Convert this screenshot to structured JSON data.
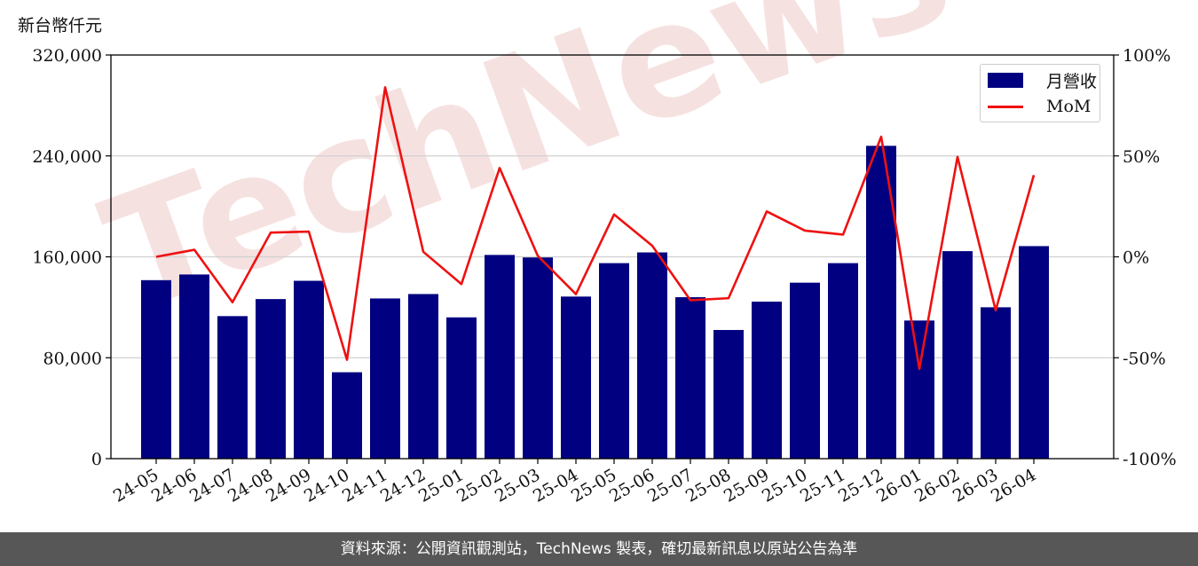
{
  "unit_label": "新台幣仟元",
  "watermark_text": "TechNews",
  "source_text": "資料來源：公開資訊觀測站，TechNews 製表，確切最新訊息以原站公告為準",
  "colors": {
    "bar": "#000080",
    "line": "#ee1111",
    "grid": "#d0d0d0",
    "watermark": "#f6dede",
    "source_bar": "#575757"
  },
  "chart_data": {
    "type": "bar",
    "categories": [
      "24-05",
      "24-06",
      "24-07",
      "24-08",
      "24-09",
      "24-10",
      "24-11",
      "24-12",
      "25-01",
      "25-02",
      "25-03",
      "25-04",
      "25-05",
      "25-06",
      "25-07",
      "25-08",
      "25-09",
      "25-10",
      "25-11",
      "25-12",
      "26-01",
      "26-02",
      "26-03",
      "26-04"
    ],
    "series": [
      {
        "name": "月營收",
        "type": "bar",
        "axis": "left",
        "values": [
          141500,
          146000,
          113000,
          126500,
          141000,
          68500,
          127000,
          130500,
          112000,
          161500,
          159500,
          128500,
          155000,
          163500,
          128000,
          102000,
          124500,
          139500,
          155000,
          248000,
          109500,
          164500,
          120000,
          168500
        ]
      },
      {
        "name": "MoM",
        "type": "line",
        "axis": "right",
        "values": [
          0,
          3.5,
          -22.5,
          12,
          12.5,
          -51,
          84,
          2.5,
          -13.5,
          44,
          0.5,
          -18.5,
          21,
          5.5,
          -21.5,
          -20.5,
          22.5,
          13,
          11,
          59.5,
          -55.5,
          49.5,
          -26.5,
          40.5
        ]
      }
    ],
    "y_left": {
      "ylim": [
        0,
        320000
      ],
      "ticks": [
        "0",
        "80,000",
        "160,000",
        "240,000",
        "320,000"
      ],
      "tick_values": [
        0,
        80000,
        160000,
        240000,
        320000
      ]
    },
    "y_right": {
      "ylim": [
        -100,
        100
      ],
      "ticks": [
        "-100%",
        "-50%",
        "0%",
        "50%",
        "100%"
      ],
      "tick_values": [
        -100,
        -50,
        0,
        50,
        100
      ]
    },
    "grid": true,
    "legend_position": "top-right"
  }
}
